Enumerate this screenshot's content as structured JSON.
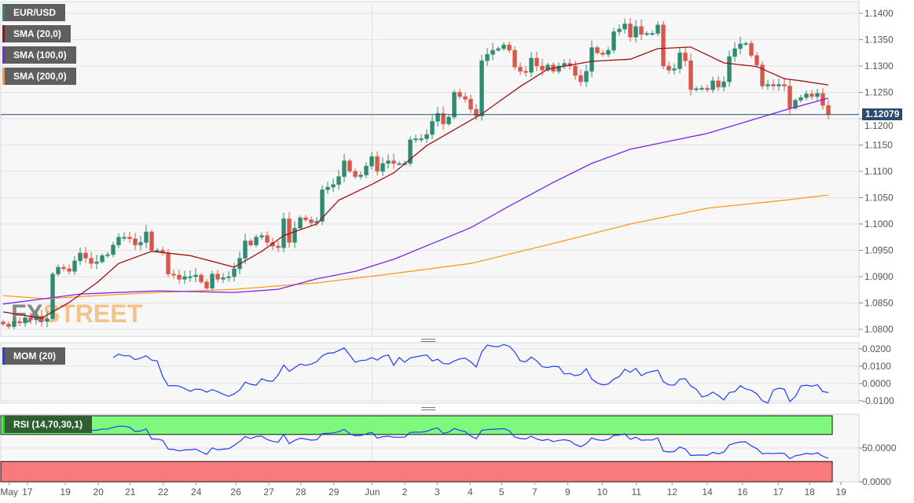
{
  "chart_data": [
    {
      "type": "candlestick",
      "panel": "price",
      "symbol": "EUR/USD",
      "legend": [
        {
          "label": "EUR/USD",
          "color": "#2f8a72"
        },
        {
          "label": "SMA (20,0)",
          "color": "#a01010"
        },
        {
          "label": "SMA (100,0)",
          "color": "#7a22ee"
        },
        {
          "label": "SMA (200,0)",
          "color": "#ff9a1a"
        }
      ],
      "last_price": "1.12079",
      "ylim": [
        1.0785,
        1.1425
      ],
      "y_ticks": [
        "1.1400",
        "1.1350",
        "1.1300",
        "1.1250",
        "1.1200",
        "1.1150",
        "1.1100",
        "1.1050",
        "1.1000",
        "1.0950",
        "1.0900",
        "1.0850",
        "1.0800"
      ],
      "closes": [
        1.081,
        1.0805,
        1.0815,
        1.0812,
        1.0822,
        1.0818,
        1.0825,
        1.0815,
        1.082,
        1.0905,
        1.0918,
        1.0915,
        1.091,
        1.093,
        1.0945,
        1.0935,
        1.0925,
        1.0928,
        1.094,
        1.0942,
        1.096,
        1.0975,
        1.0975,
        1.0972,
        1.096,
        1.0965,
        1.0985,
        1.095,
        1.095,
        1.0945,
        1.0905,
        1.0903,
        1.0895,
        1.09,
        1.09,
        1.0903,
        1.089,
        1.0878,
        1.0905,
        1.0895,
        1.0898,
        1.09,
        1.0915,
        1.0935,
        1.0968,
        1.096,
        1.0975,
        1.0978,
        1.0965,
        1.0958,
        1.0955,
        1.101,
        1.0965,
        1.0992,
        1.1012,
        1.1008,
        1.1002,
        1.1005,
        1.1065,
        1.107,
        1.1075,
        1.109,
        1.112,
        1.11,
        1.109,
        1.1093,
        1.111,
        1.1128,
        1.11,
        1.1115,
        1.112,
        1.1115,
        1.1115,
        1.1115,
        1.116,
        1.1162,
        1.1162,
        1.117,
        1.1195,
        1.121,
        1.119,
        1.1203,
        1.125,
        1.1242,
        1.1237,
        1.1218,
        1.1205,
        1.131,
        1.1322,
        1.133,
        1.1333,
        1.134,
        1.133,
        1.1298,
        1.129,
        1.1288,
        1.1315,
        1.13,
        1.1292,
        1.1302,
        1.129,
        1.13,
        1.1305,
        1.13,
        1.1282,
        1.127,
        1.129,
        1.1335,
        1.1325,
        1.1322,
        1.133,
        1.1365,
        1.137,
        1.138,
        1.1355,
        1.1375,
        1.136,
        1.1362,
        1.1362,
        1.1378,
        1.13,
        1.1292,
        1.1295,
        1.1325,
        1.131,
        1.1255,
        1.1257,
        1.1258,
        1.1255,
        1.1272,
        1.126,
        1.127,
        1.1318,
        1.1333,
        1.1342,
        1.1343,
        1.132,
        1.1302,
        1.1262,
        1.1265,
        1.1262,
        1.1265,
        1.1262,
        1.122,
        1.1235,
        1.124,
        1.1247,
        1.1242,
        1.1248,
        1.1225,
        1.12079
      ],
      "sma20": [
        [
          0,
          1.0833
        ],
        [
          7,
          1.0821
        ],
        [
          12,
          1.0851
        ],
        [
          17,
          1.0888
        ],
        [
          21,
          1.0925
        ],
        [
          27,
          1.0948
        ],
        [
          34,
          1.094
        ],
        [
          42,
          1.0918
        ],
        [
          47,
          1.0948
        ],
        [
          51,
          1.0978
        ],
        [
          57,
          1.1
        ],
        [
          61,
          1.1045
        ],
        [
          67,
          1.1075
        ],
        [
          71,
          1.1097
        ],
        [
          77,
          1.1149
        ],
        [
          82,
          1.1179
        ],
        [
          87,
          1.1209
        ],
        [
          91,
          1.1239
        ],
        [
          94,
          1.1261
        ],
        [
          99,
          1.1294
        ],
        [
          107,
          1.1309
        ],
        [
          114,
          1.1313
        ],
        [
          119,
          1.1333
        ],
        [
          125,
          1.1336
        ],
        [
          131,
          1.1306
        ],
        [
          137,
          1.1299
        ],
        [
          142,
          1.1276
        ],
        [
          145,
          1.1272
        ],
        [
          150,
          1.1264
        ]
      ],
      "sma100": [
        [
          0,
          1.0848
        ],
        [
          14,
          1.0867
        ],
        [
          28,
          1.0873
        ],
        [
          42,
          1.087
        ],
        [
          50,
          1.0876
        ],
        [
          57,
          1.0896
        ],
        [
          64,
          1.091
        ],
        [
          71,
          1.0933
        ],
        [
          78,
          1.0963
        ],
        [
          85,
          1.0993
        ],
        [
          92,
          1.1034
        ],
        [
          100,
          1.1079
        ],
        [
          107,
          1.1115
        ],
        [
          114,
          1.1142
        ],
        [
          121,
          1.1157
        ],
        [
          128,
          1.1172
        ],
        [
          135,
          1.1194
        ],
        [
          142,
          1.1216
        ],
        [
          150,
          1.1239
        ]
      ],
      "sma200": [
        [
          0,
          1.0864
        ],
        [
          8,
          1.0858
        ],
        [
          17,
          1.0864
        ],
        [
          28,
          1.087
        ],
        [
          42,
          1.0876
        ],
        [
          57,
          1.0888
        ],
        [
          71,
          1.0906
        ],
        [
          85,
          1.0925
        ],
        [
          100,
          1.0963
        ],
        [
          114,
          1.1
        ],
        [
          128,
          1.103
        ],
        [
          142,
          1.1045
        ],
        [
          150,
          1.1055
        ]
      ]
    },
    {
      "type": "line",
      "panel": "momentum",
      "legend": {
        "label": "MOM (20)",
        "color": "#1e3cff"
      },
      "period": 20,
      "ylim": [
        -0.0114,
        0.0236
      ],
      "y_ticks": [
        "0.0200",
        "0.0100",
        "0.0000",
        "-0.0100"
      ]
    },
    {
      "type": "line",
      "panel": "rsi",
      "legend": {
        "label": "RSI (14,70,30,1)",
        "color": "#22dd22"
      },
      "period": 14,
      "overbought": 70,
      "oversold": 30,
      "ylim": [
        0,
        100
      ],
      "y_ticks": [
        "50.0000",
        "0.0000"
      ],
      "band_colors": {
        "overbought": "#7dfa7d",
        "oversold": "#f97a7a"
      }
    }
  ],
  "x_axis": {
    "ticks": [
      {
        "label": "May",
        "index": 1.1
      },
      {
        "label": "17",
        "index": 4.4
      },
      {
        "label": "19",
        "index": 11.3
      },
      {
        "label": "20",
        "index": 17.3
      },
      {
        "label": "21",
        "index": 23.1
      },
      {
        "label": "22",
        "index": 29.1
      },
      {
        "label": "24",
        "index": 35.1
      },
      {
        "label": "26",
        "index": 42.3
      },
      {
        "label": "27",
        "index": 48.3
      },
      {
        "label": "28",
        "index": 54.1
      },
      {
        "label": "29",
        "index": 60.1
      },
      {
        "label": "Jun",
        "index": 67.1
      },
      {
        "label": "2",
        "index": 73
      },
      {
        "label": "3",
        "index": 78.9
      },
      {
        "label": "4",
        "index": 84.9
      },
      {
        "label": "5",
        "index": 90.6
      },
      {
        "label": "7",
        "index": 96.6
      },
      {
        "label": "9",
        "index": 102.6
      },
      {
        "label": "10",
        "index": 108.9
      },
      {
        "label": "11",
        "index": 115.1
      },
      {
        "label": "12",
        "index": 121.6
      },
      {
        "label": "14",
        "index": 128
      },
      {
        "label": "16",
        "index": 134.4
      },
      {
        "label": "17",
        "index": 140.9
      },
      {
        "label": "18",
        "index": 146.6
      },
      {
        "label": "19",
        "index": 152.3
      }
    ]
  },
  "watermark": {
    "part1": "FX",
    "part2": "STREET"
  },
  "colors": {
    "up": "#2f8a72",
    "down": "#d9564a",
    "grid": "#e2e2e2",
    "price_line": "#2b4a6e"
  }
}
